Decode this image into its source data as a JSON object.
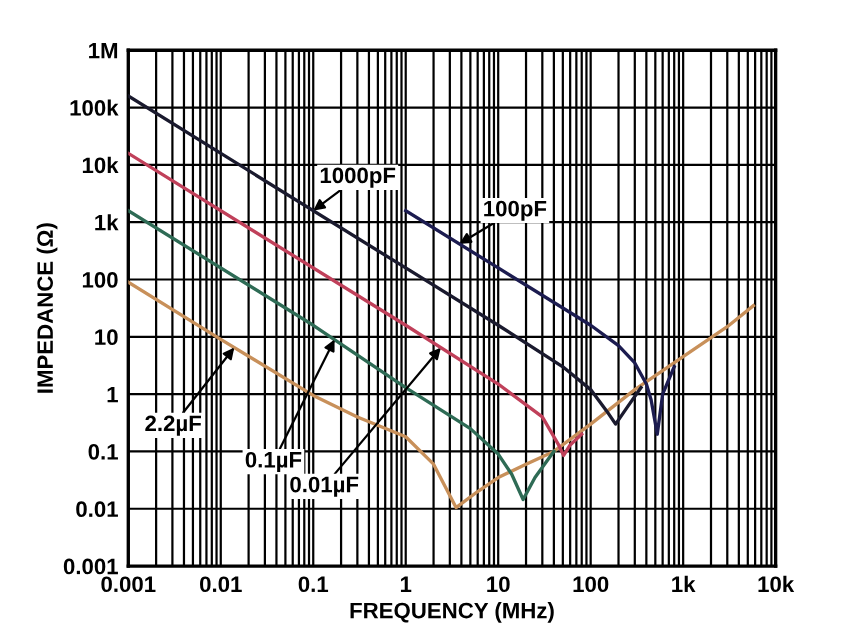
{
  "chart_data": {
    "type": "line",
    "xlabel": "FREQUENCY (MHz)",
    "ylabel": "IMPEDANCE (Ω)",
    "log": "xy",
    "grid": true,
    "legend": false,
    "marker": "none",
    "line_style": "solid",
    "xlim": [
      0.001,
      10000
    ],
    "ylim": [
      0.001,
      1000000
    ],
    "xticks": [
      0.001,
      0.01,
      0.1,
      1,
      10,
      100,
      {
        "value": 1000,
        "label": "1k"
      },
      {
        "value": 10000,
        "label": "10k"
      }
    ],
    "yticks": [
      0.001,
      0.01,
      0.1,
      1,
      10,
      100,
      {
        "value": 1000,
        "label": "1k"
      },
      {
        "value": 10000,
        "label": "10k"
      },
      {
        "value": 100000,
        "label": "100k"
      },
      {
        "value": 1000000,
        "label": "1M"
      }
    ],
    "series": [
      {
        "color": "#1a1a2e",
        "x": [
          0.001,
          1,
          10,
          50,
          100,
          150,
          186,
          250,
          350
        ],
        "values": [
          159000,
          159,
          15.9,
          3,
          1.2,
          0.5,
          0.3,
          0.6,
          1.3
        ]
      },
      {
        "color": "#1c1c50",
        "x": [
          1,
          10,
          100,
          200,
          300,
          400,
          450,
          525,
          600,
          800
        ],
        "values": [
          1590,
          159,
          15.9,
          7,
          3.5,
          1.5,
          0.8,
          0.2,
          1,
          3
        ]
      },
      {
        "color": "#c0405a",
        "x": [
          0.001,
          1,
          10,
          30,
          45,
          51,
          60,
          80
        ],
        "values": [
          15900,
          15.9,
          1.5,
          0.4,
          0.13,
          0.085,
          0.13,
          0.2
        ]
      },
      {
        "color": "#2e6b55",
        "x": [
          0.001,
          0.1,
          1,
          5,
          10,
          14,
          18.6,
          25,
          40
        ],
        "values": [
          1590,
          15.9,
          1.3,
          0.25,
          0.09,
          0.04,
          0.0145,
          0.035,
          0.1
        ]
      },
      {
        "color": "#c8905a",
        "x": [
          0.001,
          0.01,
          0.1,
          0.3,
          1,
          2,
          3.5,
          6,
          10,
          20,
          40,
          100,
          300,
          1000,
          3000,
          5750
        ],
        "values": [
          90,
          9,
          0.95,
          0.4,
          0.18,
          0.06,
          0.0105,
          0.02,
          0.035,
          0.06,
          0.1,
          0.3,
          1.2,
          4.5,
          15,
          35
        ]
      }
    ],
    "annotations": [
      {
        "text": "1000pF",
        "x": 0.1,
        "y": 1590
      },
      {
        "text": "100pF",
        "x": 3.8,
        "y": 419
      },
      {
        "text": "2.2µF",
        "x": 0.014,
        "y": 6.5
      },
      {
        "text": "0.1µF",
        "x": 0.17,
        "y": 9
      },
      {
        "text": "0.01µF",
        "x": 2.4,
        "y": 6.5
      }
    ]
  }
}
